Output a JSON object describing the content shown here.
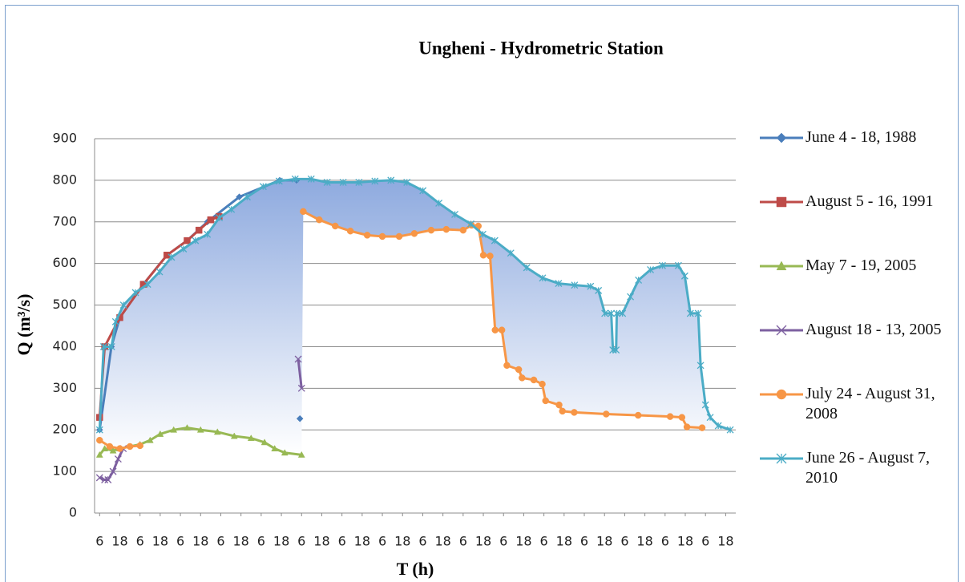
{
  "chart_data": {
    "type": "line",
    "title": "Ungheni - Hydrometric Station",
    "x_label": "T (h)",
    "y_label": "Q (m³/s)",
    "xlim": [
      3,
      384
    ],
    "ylim": [
      0,
      900
    ],
    "yticks": [
      0,
      100,
      200,
      300,
      400,
      500,
      600,
      700,
      800,
      900
    ],
    "xticks": [
      6,
      18,
      {
        "value": 30,
        "label": "6"
      },
      {
        "value": 42,
        "label": "18"
      },
      {
        "value": 54,
        "label": "6"
      },
      {
        "value": 66,
        "label": "18"
      },
      {
        "value": 78,
        "label": "6"
      },
      {
        "value": 90,
        "label": "18"
      },
      {
        "value": 102,
        "label": "6"
      },
      {
        "value": 114,
        "label": "18"
      },
      {
        "value": 126,
        "label": "6"
      },
      {
        "value": 138,
        "label": "18"
      },
      {
        "value": 150,
        "label": "6"
      },
      {
        "value": 162,
        "label": "18"
      },
      {
        "value": 174,
        "label": "6"
      },
      {
        "value": 186,
        "label": "18"
      },
      {
        "value": 198,
        "label": "6"
      },
      {
        "value": 210,
        "label": "18"
      },
      {
        "value": 222,
        "label": "6"
      },
      {
        "value": 234,
        "label": "18"
      },
      {
        "value": 246,
        "label": "6"
      },
      {
        "value": 258,
        "label": "18"
      },
      {
        "value": 270,
        "label": "6"
      },
      {
        "value": 282,
        "label": "18"
      },
      {
        "value": 294,
        "label": "6"
      },
      {
        "value": 306,
        "label": "18"
      },
      {
        "value": 318,
        "label": "6"
      },
      {
        "value": 330,
        "label": "18"
      },
      {
        "value": 342,
        "label": "6"
      },
      {
        "value": 354,
        "label": "18"
      },
      {
        "value": 366,
        "label": "6"
      },
      {
        "value": 378,
        "label": "18"
      }
    ],
    "grid": true,
    "legend": "right",
    "series": [
      {
        "name": "June 4 - 18, 1988",
        "color": "#4a7ebb",
        "marker": "diamond",
        "x": [
          6,
          13,
          18,
          32,
          46,
          58,
          70,
          89,
          113,
          123,
          124,
          125
        ],
        "values": [
          200,
          400,
          470,
          550,
          620,
          655,
          700,
          760,
          800,
          800,
          null,
          227
        ]
      },
      {
        "name": "August 5 - 16, 1991",
        "color": "#be4b48",
        "marker": "square",
        "x": [
          6,
          9,
          18,
          32,
          46,
          58,
          65,
          72,
          77
        ],
        "values": [
          230,
          400,
          470,
          550,
          620,
          655,
          680,
          705,
          713
        ]
      },
      {
        "name": "May 7 - 19, 2005",
        "color": "#98b954",
        "marker": "triangle",
        "x": [
          6,
          9,
          14,
          18,
          30,
          36,
          42,
          50,
          58,
          66,
          76,
          86,
          96,
          104,
          110,
          116,
          126
        ],
        "values": [
          140,
          155,
          150,
          155,
          165,
          175,
          190,
          200,
          205,
          200,
          195,
          185,
          180,
          170,
          155,
          145,
          140
        ]
      },
      {
        "name": "August 18 - 13, 2005",
        "color": "#7d60a0",
        "marker": "x",
        "x": [
          6,
          9,
          11,
          14,
          17,
          20,
          40,
          124,
          126
        ],
        "values": [
          85,
          80,
          80,
          100,
          130,
          155,
          null,
          370,
          300
        ]
      },
      {
        "name": "July 24 - August 31, 2008",
        "color": "#f79646",
        "marker": "circle",
        "x": [
          6,
          12,
          18,
          24,
          30,
          40,
          127,
          136.5,
          146,
          155,
          165,
          174,
          184,
          193,
          203,
          212,
          222,
          227,
          231,
          234,
          238,
          241,
          245,
          248,
          255,
          257,
          264,
          269,
          271,
          279,
          281,
          288,
          307,
          326,
          345,
          352,
          355,
          364
        ],
        "values": [
          175,
          160,
          155,
          160,
          162,
          null,
          725,
          705,
          690,
          678,
          668,
          665,
          665,
          672,
          680,
          682,
          680,
          692,
          690,
          620,
          618,
          440,
          440,
          355,
          345,
          325,
          320,
          310,
          270,
          260,
          245,
          242,
          238,
          235,
          232,
          230,
          207,
          205
        ]
      },
      {
        "name": "June 26 - August 7, 2010",
        "color": "#4bacc6",
        "marker": "asterisk",
        "x": [
          6,
          8.4,
          13.1,
          15.5,
          20.2,
          27.3,
          34.5,
          41.6,
          48.7,
          55.8,
          62.9,
          70,
          77.1,
          84.3,
          93.7,
          103.2,
          112.7,
          122.2,
          131.7,
          141.2,
          150.7,
          160.1,
          169.6,
          179.1,
          188.6,
          198.1,
          207.6,
          217.1,
          226.6,
          233.7,
          240.8,
          250.3,
          259.8,
          269.2,
          278.7,
          288.2,
          297.7,
          302.4,
          306.2,
          310,
          311,
          312.9,
          313.3,
          316.7,
          321.4,
          326.2,
          333.3,
          340.4,
          349.9,
          353.7,
          357,
          361.7,
          363.1,
          366,
          368.8,
          373.6,
          380.7
        ],
        "values": [
          200,
          400,
          400,
          460,
          500,
          530,
          550,
          580,
          615,
          635,
          655,
          670,
          710,
          730,
          760,
          785,
          798,
          803,
          803,
          795,
          795,
          795,
          798,
          800,
          795,
          775,
          745,
          718,
          695,
          670,
          655,
          625,
          590,
          565,
          552,
          548,
          545,
          535,
          480,
          480,
          392,
          392,
          480,
          480,
          520,
          560,
          585,
          595,
          595,
          570,
          480,
          480,
          355,
          260,
          230,
          210,
          200
        ]
      }
    ]
  }
}
